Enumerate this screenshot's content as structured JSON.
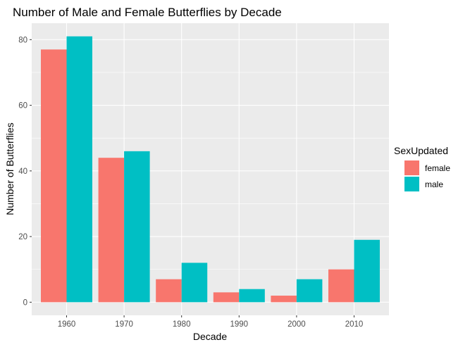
{
  "chart_data": {
    "type": "bar",
    "title": "Number of Male and Female Butterflies by Decade",
    "xlabel": "Decade",
    "ylabel": "Number of Butterflies",
    "categories": [
      "1960",
      "1970",
      "1980",
      "1990",
      "2000",
      "2010"
    ],
    "series": [
      {
        "name": "female",
        "color": "#F8766D",
        "values": [
          77,
          44,
          7,
          3,
          2,
          10
        ]
      },
      {
        "name": "male",
        "color": "#00BFC4",
        "values": [
          81,
          46,
          12,
          4,
          7,
          19
        ]
      }
    ],
    "ylim": [
      -4,
      85
    ],
    "yticks": [
      0,
      20,
      40,
      60,
      80
    ],
    "yticks_labels": [
      "0",
      "20",
      "40",
      "60",
      "80"
    ],
    "legend": {
      "title": "SexUpdated",
      "position": "right"
    },
    "grid": true,
    "panel_background": "#EBEBEB",
    "grid_color": "#FFFFFF"
  }
}
